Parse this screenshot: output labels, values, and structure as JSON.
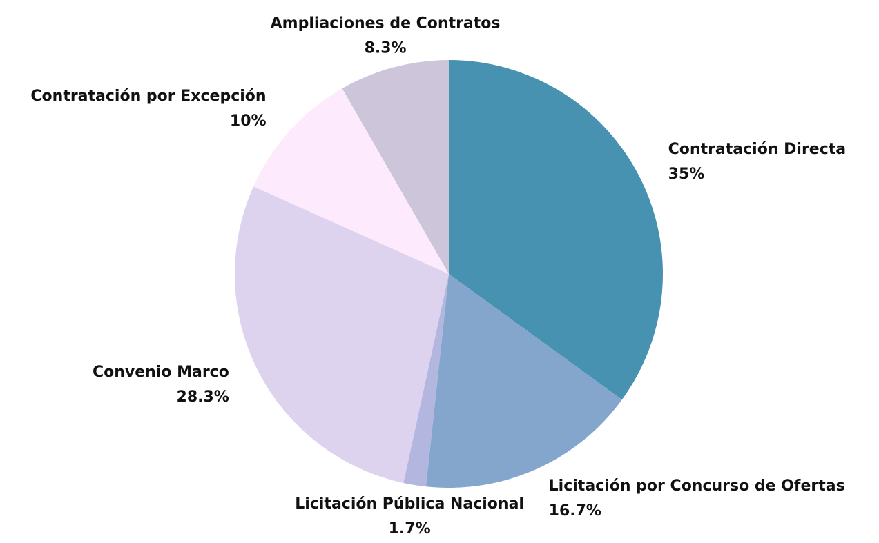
{
  "chart_data": {
    "type": "pie",
    "categories": [
      "Contratación Directa",
      "Licitación por Concurso de Ofertas",
      "Licitación Pública Nacional",
      "Convenio Marco",
      "Contratación por Excepción",
      "Ampliaciones de Contratos"
    ],
    "values": [
      35,
      16.7,
      1.7,
      28.3,
      10,
      8.3
    ],
    "value_labels": [
      "35%",
      "16.7%",
      "1.7%",
      "28.3%",
      "10%",
      "8.3%"
    ],
    "colors": [
      "#4692b0",
      "#84a6cc",
      "#b3b6de",
      "#ddd3ee",
      "#fdeafc",
      "#cdc5d9"
    ]
  }
}
